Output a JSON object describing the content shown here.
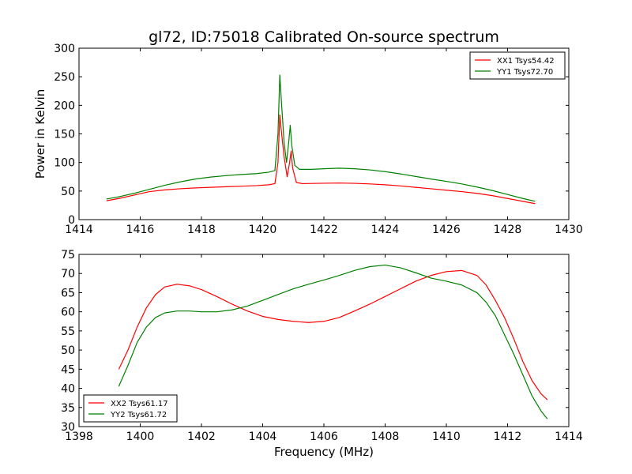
{
  "figure": {
    "title": "gl72, ID:75018 Calibrated On-source spectrum"
  },
  "chart_data": [
    {
      "type": "line",
      "title": "gl72, ID:75018 Calibrated On-source spectrum",
      "xlabel": "",
      "ylabel": "Power in Kelvin",
      "xlim": [
        1414,
        1430
      ],
      "ylim": [
        0,
        300
      ],
      "xticks": [
        1414,
        1416,
        1418,
        1420,
        1422,
        1424,
        1426,
        1428,
        1430
      ],
      "yticks": [
        0,
        50,
        100,
        150,
        200,
        250,
        300
      ],
      "grid": false,
      "legend_position": "top-right",
      "series": [
        {
          "name": "XX1 Tsys54.42",
          "color": "#ff0000",
          "points": [
            [
              1414.9,
              33
            ],
            [
              1415.3,
              37
            ],
            [
              1415.8,
              43
            ],
            [
              1416.3,
              49
            ],
            [
              1416.8,
              52
            ],
            [
              1417.3,
              54
            ],
            [
              1417.8,
              55.5
            ],
            [
              1418.3,
              56.5
            ],
            [
              1418.8,
              57.5
            ],
            [
              1419.3,
              58.5
            ],
            [
              1419.8,
              59.5
            ],
            [
              1420.2,
              61
            ],
            [
              1420.4,
              63
            ],
            [
              1420.5,
              100
            ],
            [
              1420.56,
              183
            ],
            [
              1420.62,
              150
            ],
            [
              1420.7,
              110
            ],
            [
              1420.8,
              75
            ],
            [
              1420.88,
              100
            ],
            [
              1420.93,
              120
            ],
            [
              1420.98,
              90
            ],
            [
              1421.1,
              65
            ],
            [
              1421.3,
              63
            ],
            [
              1421.8,
              63.5
            ],
            [
              1422.5,
              64
            ],
            [
              1423.0,
              63.5
            ],
            [
              1423.5,
              62.5
            ],
            [
              1424.0,
              61
            ],
            [
              1424.5,
              59
            ],
            [
              1425.0,
              56.5
            ],
            [
              1425.5,
              54
            ],
            [
              1426.0,
              51.5
            ],
            [
              1426.5,
              49
            ],
            [
              1427.0,
              46
            ],
            [
              1427.5,
              42
            ],
            [
              1428.0,
              37
            ],
            [
              1428.5,
              32
            ],
            [
              1428.9,
              28
            ]
          ]
        },
        {
          "name": "YY1 Tsys72.70",
          "color": "#008000",
          "points": [
            [
              1414.9,
              36
            ],
            [
              1415.3,
              40
            ],
            [
              1415.8,
              46
            ],
            [
              1416.3,
              53
            ],
            [
              1416.8,
              60
            ],
            [
              1417.3,
              66
            ],
            [
              1417.8,
              71
            ],
            [
              1418.3,
              74.5
            ],
            [
              1418.8,
              77
            ],
            [
              1419.3,
              79
            ],
            [
              1419.8,
              80.5
            ],
            [
              1420.2,
              83
            ],
            [
              1420.4,
              86
            ],
            [
              1420.5,
              150
            ],
            [
              1420.56,
              253
            ],
            [
              1420.62,
              200
            ],
            [
              1420.7,
              135
            ],
            [
              1420.78,
              100
            ],
            [
              1420.85,
              135
            ],
            [
              1420.9,
              165
            ],
            [
              1420.95,
              130
            ],
            [
              1421.05,
              95
            ],
            [
              1421.2,
              88
            ],
            [
              1421.6,
              88
            ],
            [
              1422.0,
              89
            ],
            [
              1422.5,
              90
            ],
            [
              1423.0,
              89
            ],
            [
              1423.5,
              87
            ],
            [
              1424.0,
              84
            ],
            [
              1424.5,
              80
            ],
            [
              1425.0,
              75.5
            ],
            [
              1425.5,
              71
            ],
            [
              1426.0,
              67
            ],
            [
              1426.5,
              62.5
            ],
            [
              1427.0,
              57
            ],
            [
              1427.5,
              51
            ],
            [
              1428.0,
              44
            ],
            [
              1428.5,
              37
            ],
            [
              1428.9,
              32
            ]
          ]
        }
      ]
    },
    {
      "type": "line",
      "title": "",
      "xlabel": "Frequency (MHz)",
      "ylabel": "",
      "xlim": [
        1398,
        1414
      ],
      "ylim": [
        30,
        75
      ],
      "xticks": [
        1398,
        1400,
        1402,
        1404,
        1406,
        1408,
        1410,
        1412,
        1414
      ],
      "yticks": [
        30,
        35,
        40,
        45,
        50,
        55,
        60,
        65,
        70,
        75
      ],
      "grid": false,
      "legend_position": "bottom-left",
      "series": [
        {
          "name": "XX2 Tsys61.17",
          "color": "#ff0000",
          "points": [
            [
              1399.3,
              45
            ],
            [
              1399.6,
              50
            ],
            [
              1399.9,
              56
            ],
            [
              1400.2,
              61
            ],
            [
              1400.5,
              64.5
            ],
            [
              1400.8,
              66.5
            ],
            [
              1401.2,
              67.2
            ],
            [
              1401.6,
              66.8
            ],
            [
              1402.0,
              65.8
            ],
            [
              1402.5,
              64
            ],
            [
              1403.0,
              62
            ],
            [
              1403.5,
              60.2
            ],
            [
              1404.0,
              58.8
            ],
            [
              1404.5,
              58
            ],
            [
              1405.0,
              57.5
            ],
            [
              1405.5,
              57.2
            ],
            [
              1406.0,
              57.5
            ],
            [
              1406.5,
              58.5
            ],
            [
              1407.0,
              60.2
            ],
            [
              1407.5,
              62
            ],
            [
              1408.0,
              64
            ],
            [
              1408.5,
              66
            ],
            [
              1409.0,
              68
            ],
            [
              1409.5,
              69.5
            ],
            [
              1410.0,
              70.5
            ],
            [
              1410.5,
              70.8
            ],
            [
              1411.0,
              69.5
            ],
            [
              1411.3,
              67
            ],
            [
              1411.6,
              63
            ],
            [
              1411.9,
              58.5
            ],
            [
              1412.2,
              53
            ],
            [
              1412.5,
              47
            ],
            [
              1412.8,
              42
            ],
            [
              1413.1,
              38.5
            ],
            [
              1413.3,
              37
            ]
          ]
        },
        {
          "name": "YY2 Tsys61.72",
          "color": "#008000",
          "points": [
            [
              1399.3,
              40.5
            ],
            [
              1399.6,
              46
            ],
            [
              1399.9,
              52
            ],
            [
              1400.2,
              56
            ],
            [
              1400.5,
              58.5
            ],
            [
              1400.8,
              59.7
            ],
            [
              1401.2,
              60.2
            ],
            [
              1401.6,
              60.2
            ],
            [
              1402.0,
              60
            ],
            [
              1402.5,
              60
            ],
            [
              1403.0,
              60.5
            ],
            [
              1403.5,
              61.5
            ],
            [
              1404.0,
              63
            ],
            [
              1404.5,
              64.5
            ],
            [
              1405.0,
              66
            ],
            [
              1405.5,
              67.2
            ],
            [
              1406.0,
              68.3
            ],
            [
              1406.5,
              69.5
            ],
            [
              1407.0,
              70.8
            ],
            [
              1407.5,
              71.8
            ],
            [
              1408.0,
              72.2
            ],
            [
              1408.5,
              71.5
            ],
            [
              1409.0,
              70.2
            ],
            [
              1409.5,
              68.8
            ],
            [
              1410.0,
              68
            ],
            [
              1410.5,
              67
            ],
            [
              1411.0,
              65
            ],
            [
              1411.3,
              62.5
            ],
            [
              1411.6,
              59
            ],
            [
              1411.9,
              54
            ],
            [
              1412.2,
              49
            ],
            [
              1412.5,
              43.5
            ],
            [
              1412.8,
              38
            ],
            [
              1413.1,
              34
            ],
            [
              1413.3,
              32
            ]
          ]
        }
      ]
    }
  ]
}
